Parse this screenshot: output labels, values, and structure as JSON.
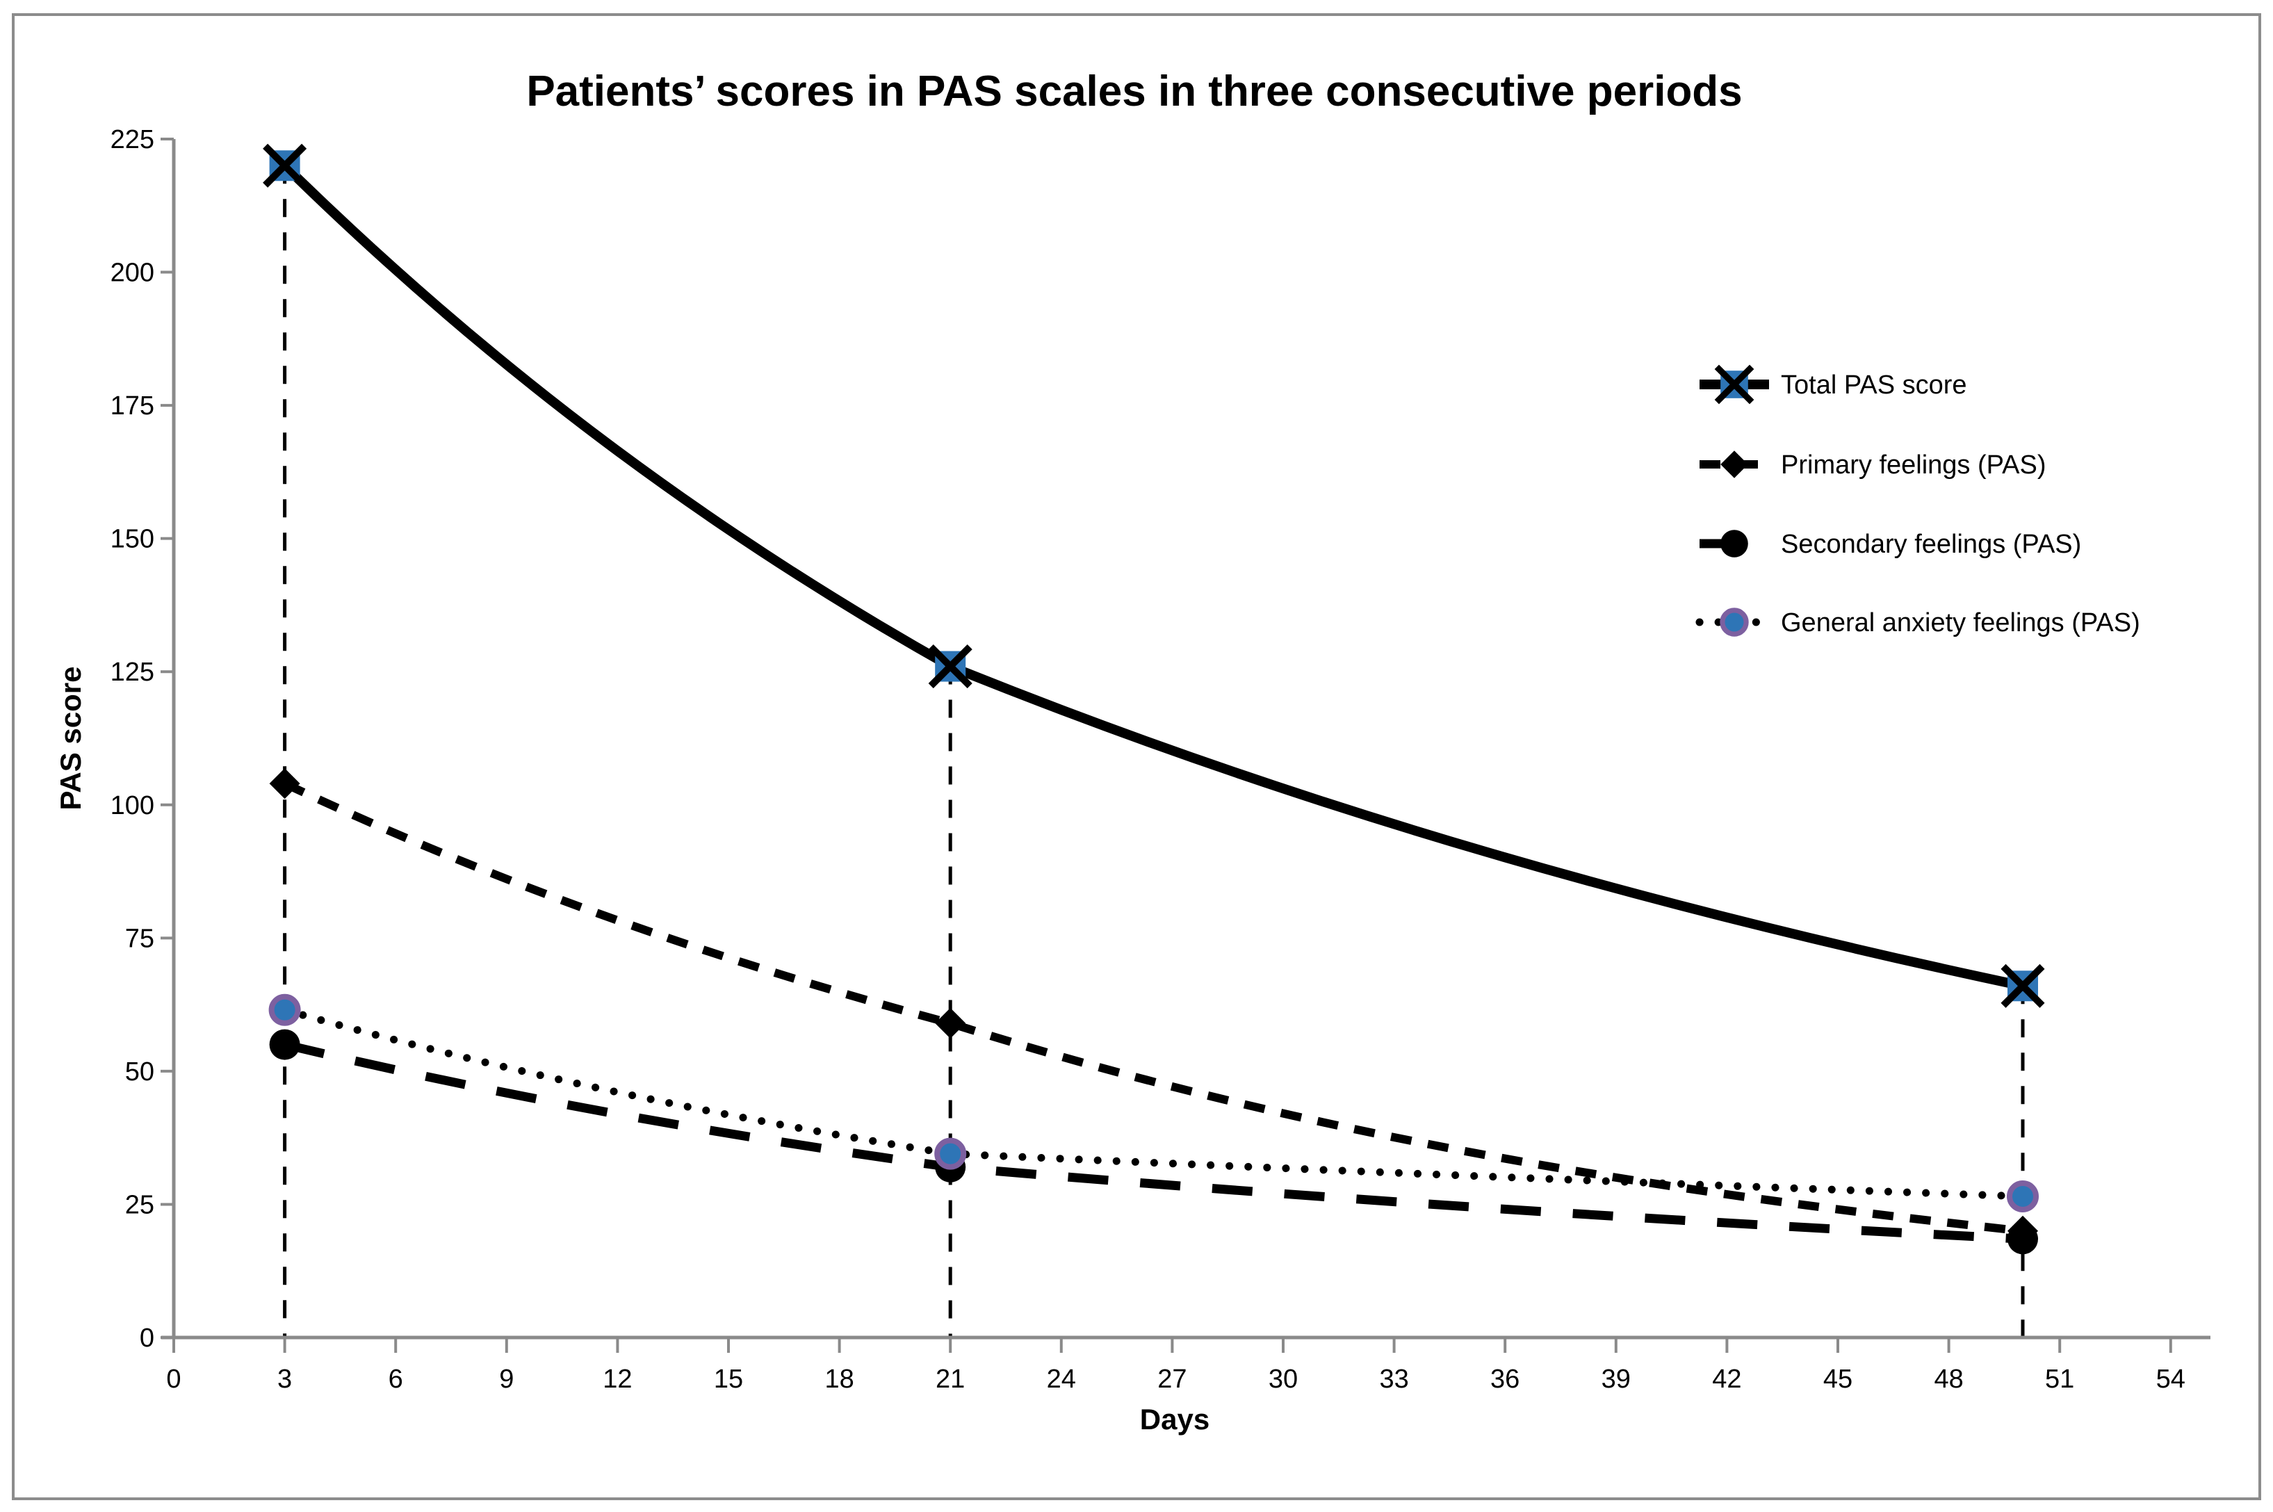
{
  "figure": {
    "background": "#FFFFFF",
    "border_color": "#8C8C8C"
  },
  "chart_data": {
    "type": "line",
    "title": "Patients’ scores in PAS scales in three consecutive periods",
    "xlabel": "Days",
    "ylabel": "PAS score",
    "x": [
      3,
      21,
      50
    ],
    "xlim": [
      0,
      54
    ],
    "x_tick_step": 3,
    "x_ticks": [
      0,
      3,
      6,
      9,
      12,
      15,
      18,
      21,
      24,
      27,
      30,
      33,
      36,
      39,
      42,
      45,
      48,
      51,
      54
    ],
    "ylim": [
      0,
      225
    ],
    "y_ticks": [
      0,
      25,
      50,
      75,
      100,
      125,
      150,
      175,
      200,
      225
    ],
    "grid": false,
    "legend_position": "right-inside",
    "guides_at_x": [
      3,
      21,
      50
    ],
    "series": [
      {
        "name": "Total PAS score",
        "values": [
          220,
          126,
          66
        ],
        "line": "solid",
        "marker": "x-square"
      },
      {
        "name": "Primary feelings (PAS)",
        "values": [
          104,
          59,
          20
        ],
        "line": "dash",
        "marker": "diamond"
      },
      {
        "name": "Secondary feelings (PAS)",
        "values": [
          55,
          32,
          18.5
        ],
        "line": "long-dash",
        "marker": "circle"
      },
      {
        "name": "General anxiety feelings (PAS)",
        "values": [
          61.5,
          34.5,
          26.5
        ],
        "line": "dot",
        "marker": "ring-circle"
      }
    ],
    "colors": {
      "line_black": "#000000",
      "marker_blue": "#2E75B6",
      "ring_purple": "#7D60A0",
      "axis_gray": "#8A8A8A"
    }
  }
}
